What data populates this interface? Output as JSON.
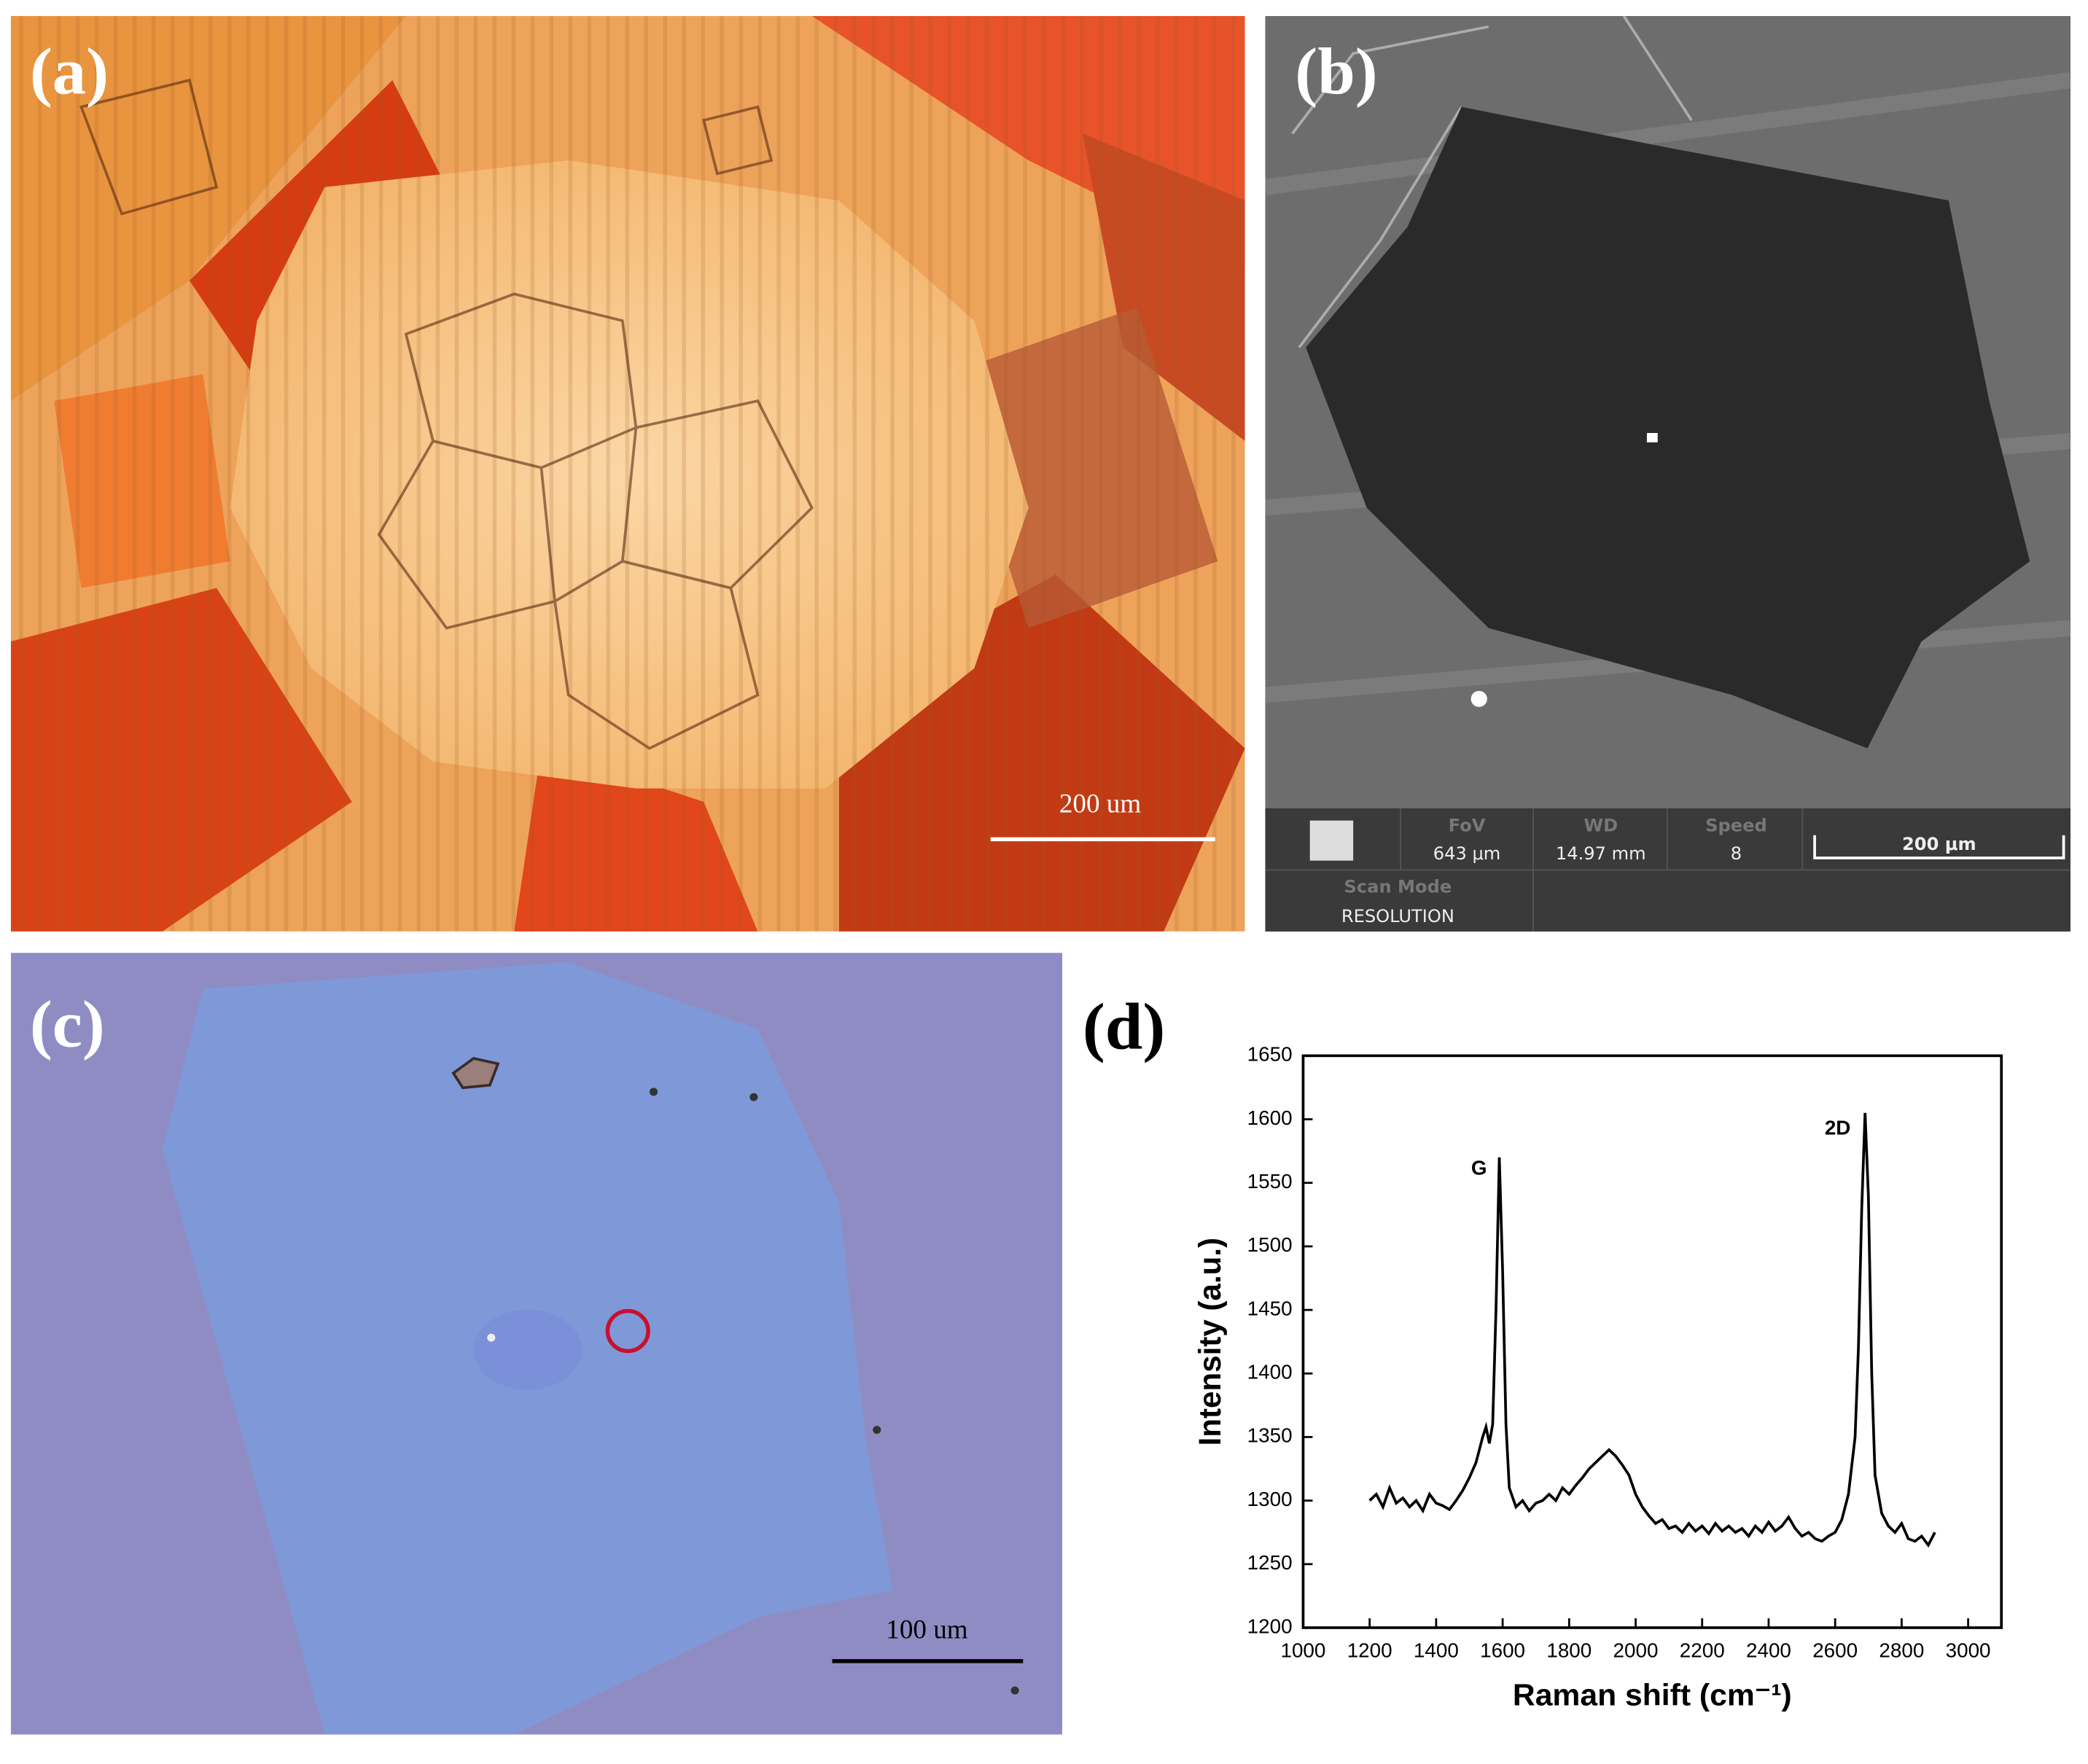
{
  "panels": {
    "a": {
      "label": "(a)",
      "scale_bar": "200 um"
    },
    "b": {
      "label": "(b)",
      "fov_label": "FoV",
      "fov": "643 μm",
      "wd_label": "WD",
      "wd": "14.97 mm",
      "speed_label": "Speed",
      "speed": "8",
      "scale_bar": "200 μm",
      "scan_mode_label": "Scan Mode",
      "scan_mode": "RESOLUTION"
    },
    "c": {
      "label": "(c)",
      "scale_bar": "100 um"
    },
    "d": {
      "label": "(d)"
    }
  },
  "chart_data": {
    "type": "line",
    "xlabel": "Raman shift (cm⁻¹)",
    "ylabel": "Intensity (a.u.)",
    "annotations": [
      "G",
      "2D"
    ],
    "color": "#000000",
    "x": [
      1200,
      1220,
      1240,
      1260,
      1280,
      1300,
      1320,
      1340,
      1360,
      1380,
      1400,
      1420,
      1440,
      1460,
      1480,
      1500,
      1520,
      1540,
      1550,
      1560,
      1570,
      1580,
      1590,
      1600,
      1610,
      1620,
      1640,
      1660,
      1680,
      1700,
      1720,
      1740,
      1760,
      1780,
      1800,
      1820,
      1840,
      1860,
      1880,
      1900,
      1920,
      1940,
      1960,
      1980,
      2000,
      2020,
      2040,
      2060,
      2080,
      2100,
      2120,
      2140,
      2160,
      2180,
      2200,
      2220,
      2240,
      2260,
      2280,
      2300,
      2320,
      2340,
      2360,
      2380,
      2400,
      2420,
      2440,
      2460,
      2480,
      2500,
      2520,
      2540,
      2560,
      2580,
      2600,
      2620,
      2640,
      2660,
      2670,
      2680,
      2690,
      2700,
      2710,
      2720,
      2740,
      2760,
      2780,
      2800,
      2820,
      2840,
      2860,
      2880,
      2900
    ],
    "values": [
      1300,
      1305,
      1295,
      1310,
      1298,
      1302,
      1295,
      1300,
      1292,
      1305,
      1298,
      1296,
      1293,
      1300,
      1308,
      1318,
      1330,
      1350,
      1358,
      1345,
      1360,
      1450,
      1570,
      1480,
      1360,
      1310,
      1295,
      1300,
      1292,
      1298,
      1300,
      1305,
      1300,
      1310,
      1305,
      1312,
      1318,
      1325,
      1330,
      1335,
      1340,
      1335,
      1328,
      1320,
      1305,
      1295,
      1288,
      1282,
      1285,
      1278,
      1280,
      1275,
      1282,
      1276,
      1280,
      1274,
      1282,
      1276,
      1280,
      1275,
      1278,
      1272,
      1280,
      1275,
      1283,
      1276,
      1280,
      1287,
      1278,
      1272,
      1275,
      1270,
      1268,
      1272,
      1275,
      1285,
      1305,
      1350,
      1420,
      1530,
      1605,
      1540,
      1400,
      1320,
      1290,
      1280,
      1275,
      1282,
      1270,
      1268,
      1272,
      1265,
      1275
    ],
    "xlim": [
      1000,
      3100
    ],
    "ylim": [
      1200,
      1650
    ],
    "xticks": [
      1000,
      1200,
      1400,
      1600,
      1800,
      2000,
      2200,
      2400,
      2600,
      2800,
      3000
    ],
    "yticks": [
      1200,
      1250,
      1300,
      1350,
      1400,
      1450,
      1500,
      1550,
      1600,
      1650
    ]
  }
}
